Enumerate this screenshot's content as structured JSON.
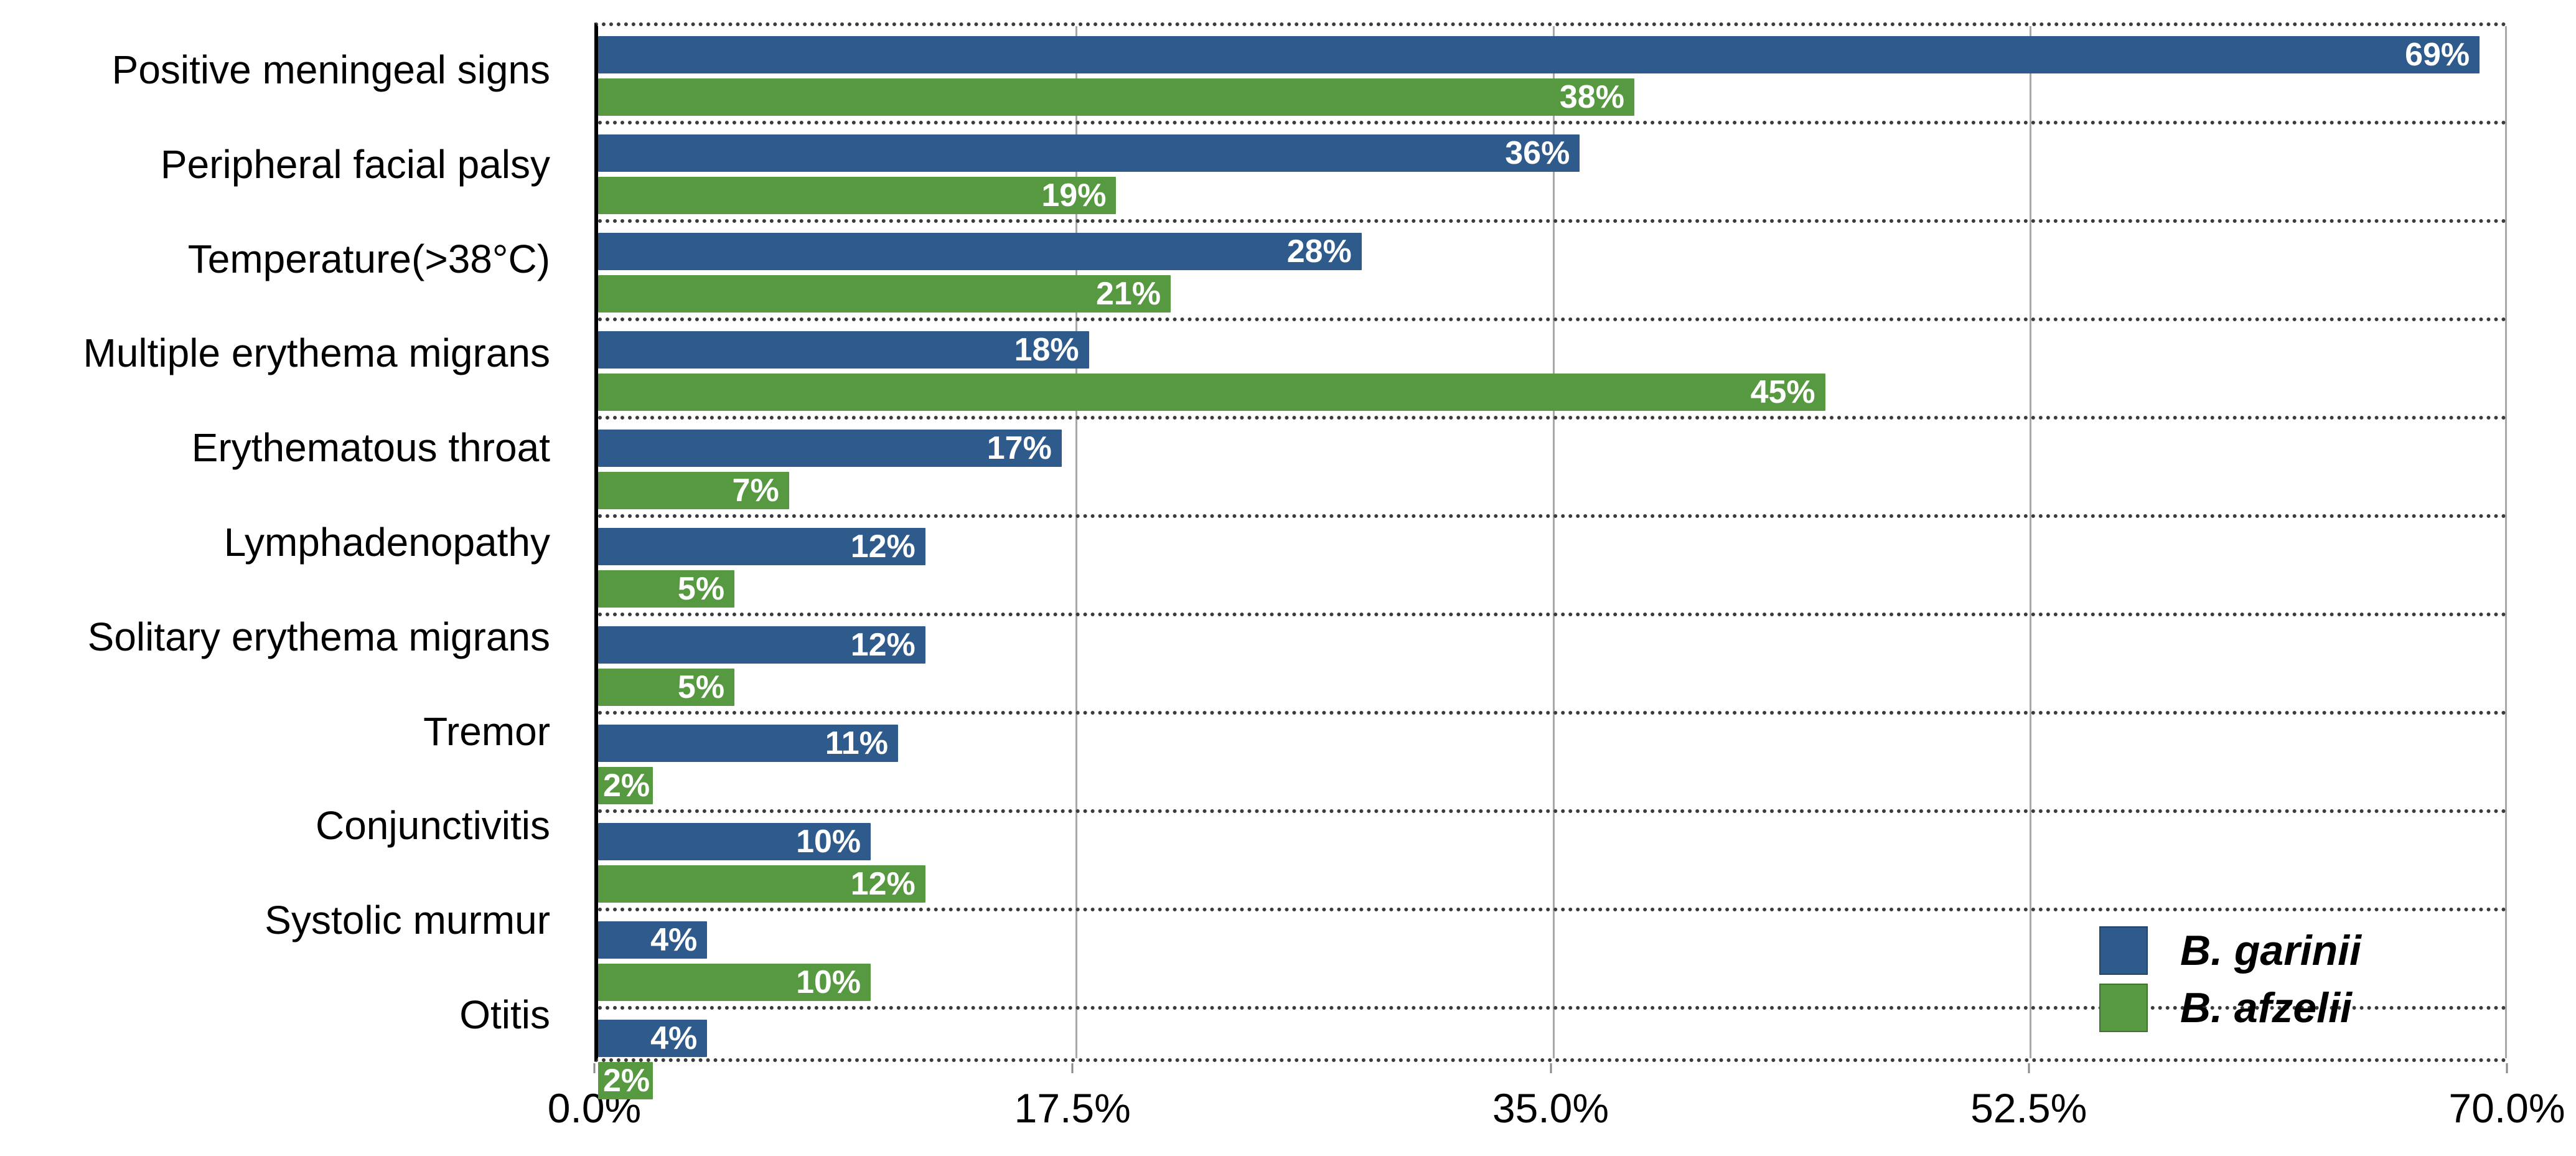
{
  "chart_data": {
    "type": "bar",
    "orientation": "horizontal",
    "title": "",
    "xlabel": "",
    "ylabel": "",
    "xlim": [
      0,
      70
    ],
    "x_ticks": [
      "0.0%",
      "17.5%",
      "35.0%",
      "52.5%",
      "70.0%"
    ],
    "x_tick_positions": [
      0,
      17.5,
      35,
      52.5,
      70
    ],
    "grid": "vertical solid gridlines; dotted horizontal category separators",
    "legend_position": "bottom-right",
    "value_suffix": "%",
    "categories": [
      "Positive meningeal signs",
      "Peripheral facial palsy",
      "Temperature(>38°C)",
      "Multiple erythema migrans",
      "Erythematous throat",
      "Lymphadenopathy",
      "Solitary erythema migrans",
      "Tremor",
      "Conjunctivitis",
      "Systolic murmur",
      "Otitis"
    ],
    "series": [
      {
        "name": "B. garinii",
        "color": "#2f5a8c",
        "values": [
          69,
          36,
          28,
          18,
          17,
          12,
          12,
          11,
          10,
          4,
          4
        ]
      },
      {
        "name": "B. afzelii",
        "color": "#569941",
        "values": [
          38,
          19,
          21,
          45,
          7,
          5,
          5,
          2,
          12,
          10,
          2
        ]
      }
    ]
  }
}
